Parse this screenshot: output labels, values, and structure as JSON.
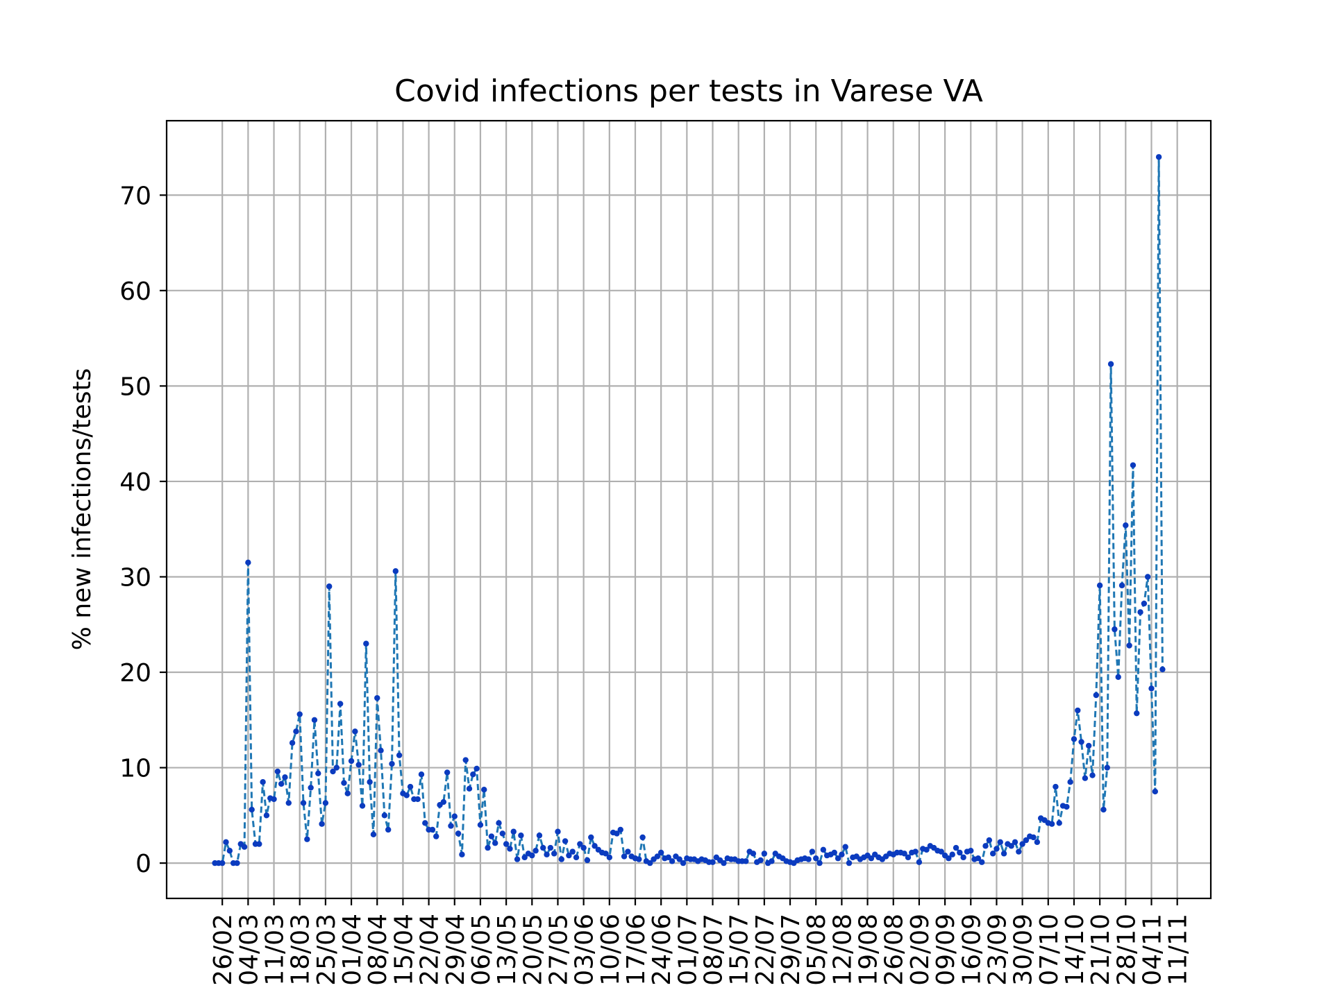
{
  "chart_data": {
    "type": "line",
    "title": "Covid infections per tests in Varese VA",
    "xlabel": "",
    "ylabel": "% new infections/tests",
    "ylim": [
      -3.7,
      77.8
    ],
    "y_ticks": [
      0,
      10,
      20,
      30,
      40,
      50,
      60,
      70
    ],
    "x_ticks": [
      "26/02",
      "04/03",
      "11/03",
      "18/03",
      "25/03",
      "01/04",
      "08/04",
      "15/04",
      "22/04",
      "29/04",
      "06/05",
      "13/05",
      "20/05",
      "27/05",
      "03/06",
      "10/06",
      "17/06",
      "24/06",
      "01/07",
      "08/07",
      "15/07",
      "22/07",
      "29/07",
      "05/08",
      "12/08",
      "19/08",
      "26/08",
      "02/09",
      "09/09",
      "16/09",
      "23/09",
      "30/09",
      "07/10",
      "14/10",
      "21/10",
      "28/10",
      "04/11",
      "11/11"
    ],
    "x_start": "24/02",
    "grid": true,
    "legend": "none",
    "colors": {
      "line": "#1f77b4",
      "marker": "#0b3bbf"
    },
    "series": [
      {
        "values": [
          0,
          0,
          0,
          2.2,
          1.3,
          0,
          0,
          2,
          1.7,
          31.5,
          5.6,
          2,
          2,
          8.5,
          5,
          6.8,
          6.7,
          9.6,
          8.3,
          9,
          6.3,
          12.6,
          13.8,
          15.6,
          6.3,
          2.5,
          7.9,
          15,
          9.4,
          4.1,
          6.3,
          29,
          9.6,
          10,
          16.7,
          8.4,
          7.3,
          10.7,
          13.8,
          10.3,
          6,
          23,
          8.5,
          3,
          17.3,
          11.8,
          5,
          3.5,
          10.4,
          30.6,
          11.3,
          7.3,
          7.1,
          8,
          6.7,
          6.7,
          9.3,
          4.2,
          3.5,
          3.5,
          2.8,
          6.1,
          6.4,
          9.5,
          3.9,
          4.9,
          3.1,
          0.9,
          10.8,
          7.8,
          9.3,
          9.9,
          4,
          7.7,
          1.6,
          2.8,
          2.1,
          4.2,
          3.1,
          2,
          1.5,
          3.3,
          0.4,
          2.9,
          0.6,
          1,
          0.8,
          1.3,
          2.9,
          1.6,
          0.9,
          1.6,
          1,
          3.3,
          0.4,
          2.3,
          0.8,
          1.2,
          0.6,
          2,
          1.6,
          0.3,
          2.7,
          1.8,
          1.4,
          1.1,
          1,
          0.6,
          3.2,
          3.1,
          3.5,
          0.7,
          1.2,
          0.7,
          0.5,
          0.4,
          2.7,
          0.2,
          0,
          0.4,
          0.7,
          1.1,
          0.5,
          0.6,
          0.2,
          0.7,
          0.4,
          0,
          0.5,
          0.4,
          0.4,
          0.2,
          0.4,
          0.3,
          0.1,
          0.1,
          0.6,
          0.3,
          0,
          0.5,
          0.4,
          0.4,
          0.2,
          0.2,
          0.2,
          1.2,
          1,
          0.1,
          0.3,
          1,
          0,
          0.2,
          1,
          0.7,
          0.5,
          0.2,
          0.1,
          0,
          0.3,
          0.4,
          0.5,
          0.4,
          1.2,
          0.5,
          0,
          1.4,
          0.8,
          0.9,
          1.1,
          0.5,
          0.9,
          1.7,
          0,
          0.6,
          0.7,
          0.4,
          0.6,
          0.8,
          0.5,
          0.9,
          0.6,
          0.4,
          0.7,
          1,
          0.9,
          1.1,
          1.1,
          1,
          0.6,
          1.1,
          1.2,
          0.1,
          1.5,
          1.4,
          1.8,
          1.6,
          1.3,
          1.2,
          0.8,
          0.5,
          0.9,
          1.6,
          1.1,
          0.6,
          1.2,
          1.3,
          0.4,
          0.5,
          0.1,
          1.8,
          2.4,
          1,
          1.5,
          2.2,
          1,
          2,
          1.8,
          2.2,
          1.2,
          2,
          2.4,
          2.8,
          2.7,
          2.2,
          4.7,
          4.5,
          4.2,
          4.1,
          8,
          4.2,
          6,
          5.9,
          8.5,
          13,
          16,
          12.7,
          8.9,
          12.3,
          9.2,
          17.6,
          29.1,
          5.6,
          10,
          52.3,
          24.5,
          19.5,
          29.1,
          35.4,
          22.8,
          41.7,
          15.7,
          26.3,
          27.2,
          30,
          18.3,
          7.5,
          74,
          20.3
        ]
      }
    ]
  }
}
